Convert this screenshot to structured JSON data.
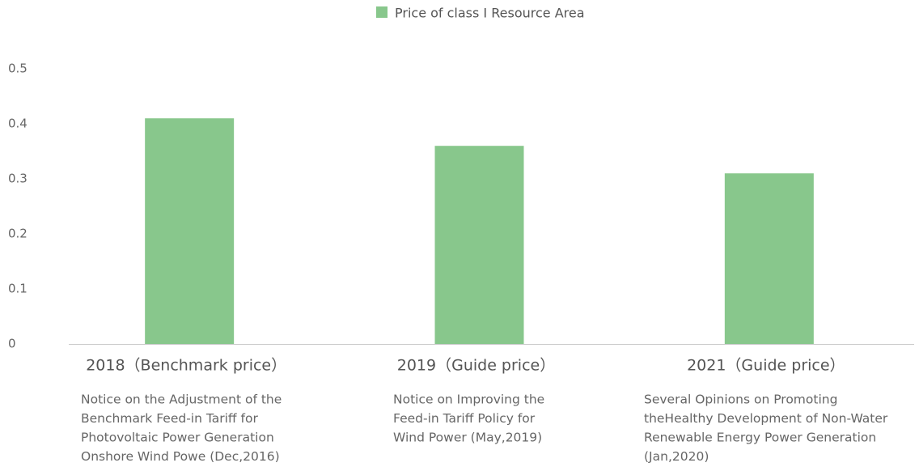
{
  "chart_data": {
    "type": "bar",
    "legend": "Price of class I Resource Area",
    "color": "#88c78c",
    "categories": [
      "2018（Benchmark price）",
      "2019（Guide price）",
      "2021（Guide price）"
    ],
    "values": [
      0.41,
      0.36,
      0.31
    ],
    "notes": [
      [
        "Notice on the Adjustment of the",
        "Benchmark Feed-in Tariff for",
        "Photovoltaic Power Generation",
        "Onshore Wind Powe (Dec,2016)"
      ],
      [
        "Notice on Improving the",
        "Feed-in Tariff Policy for",
        "Wind Power (May,2019)"
      ],
      [
        "Several Opinions on Promoting",
        "theHealthy Development of Non-Water",
        "Renewable Energy Power Generation",
        "(Jan,2020)"
      ]
    ],
    "ylim": [
      0,
      0.5
    ],
    "yticks": [
      0,
      0.1,
      0.2,
      0.3,
      0.4,
      0.5
    ],
    "grid": false
  }
}
